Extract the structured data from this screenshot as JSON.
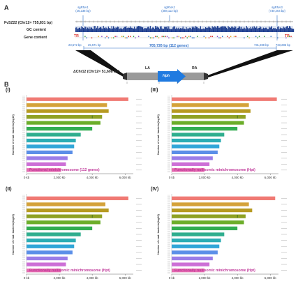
{
  "panels": {
    "a": "A",
    "b": "B"
  },
  "panel_a": {
    "chr_label": "FvSZ22 (Chr12= 755,831 bp)",
    "tracks": [
      "GC content",
      "Gene content"
    ],
    "sgrnas": [
      {
        "name": "sgRNA1",
        "pos": "(26,238 bp)"
      },
      {
        "name": "sgRNA2",
        "pos": "(388,113 bp)"
      },
      {
        "name": "sgRNA3",
        "pos": "(730,264 bp)"
      }
    ],
    "tr_left": "TR",
    "tr_right": "TR",
    "coords": {
      "left_outer": "23,572 bp",
      "left_inner": "25,571 bp",
      "right_inner": "731,288 bp",
      "right_outer": "733,285 bp"
    },
    "deletion_span": "705,726 bp (112 genes)",
    "mini_label": "ΔChr12 (Chr12= 51,608 bp)",
    "la": "LA",
    "ra": "RA",
    "hph": "Hph"
  },
  "panel_b": {
    "y_axis_label": "Number of read: bacterio(log10)",
    "charts": [
      {
        "roman": "(I)",
        "caption": "Functional minichromosome (112 genes)",
        "x_ticks": [
          "0 kb",
          "2,000 kb",
          "4,000 kb",
          "6,000 kb"
        ],
        "bars": [
          {
            "value": 6200,
            "color": "#f07a74"
          },
          {
            "value": 4900,
            "color": "#d4a23a"
          },
          {
            "value": 5000,
            "color": "#b79a22"
          },
          {
            "value": 4600,
            "color": "#8fa124"
          },
          {
            "value": 4500,
            "color": "#6cae2a"
          },
          {
            "value": 4000,
            "color": "#33ad52"
          },
          {
            "value": 3300,
            "color": "#2fae8e"
          },
          {
            "value": 3000,
            "color": "#2cadb4"
          },
          {
            "value": 2900,
            "color": "#31a6d8"
          },
          {
            "value": 2800,
            "color": "#5b8fe8"
          },
          {
            "value": 2500,
            "color": "#9b7de8"
          },
          {
            "value": 2400,
            "color": "#cc6fd6"
          },
          {
            "value": 2100,
            "color": "#e46bb0"
          }
        ]
      },
      {
        "roman": "(III)",
        "caption": "Functionally nullisomic minichromosome (Hpt)",
        "x_ticks": [
          "0 kb",
          "2,000 kb",
          "4,000 kb",
          "6,000 kb"
        ],
        "bars": [
          {
            "value": 6400,
            "color": "#f07a74"
          },
          {
            "value": 4700,
            "color": "#d4a23a"
          },
          {
            "value": 4800,
            "color": "#b79a22"
          },
          {
            "value": 4500,
            "color": "#8fa124"
          },
          {
            "value": 4400,
            "color": "#6cae2a"
          },
          {
            "value": 4000,
            "color": "#33ad52"
          },
          {
            "value": 3200,
            "color": "#2fae8e"
          },
          {
            "value": 3000,
            "color": "#2cadb4"
          },
          {
            "value": 2900,
            "color": "#31a6d8"
          },
          {
            "value": 2800,
            "color": "#5b8fe8"
          },
          {
            "value": 2500,
            "color": "#9b7de8"
          },
          {
            "value": 2300,
            "color": "#cc6fd6"
          },
          {
            "value": 2000,
            "color": "#e46bb0"
          }
        ]
      },
      {
        "roman": "(II)",
        "caption": "Functionally nullisomic minichromosome (Hpt)",
        "x_ticks": [
          "0 kb",
          "2,000 kb",
          "4,000 kb",
          "6,000 kb"
        ],
        "bars": [
          {
            "value": 6200,
            "color": "#f07a74"
          },
          {
            "value": 4800,
            "color": "#d4a23a"
          },
          {
            "value": 5000,
            "color": "#b79a22"
          },
          {
            "value": 4600,
            "color": "#8fa124"
          },
          {
            "value": 4500,
            "color": "#6cae2a"
          },
          {
            "value": 4000,
            "color": "#33ad52"
          },
          {
            "value": 3300,
            "color": "#2fae8e"
          },
          {
            "value": 3000,
            "color": "#2cadb4"
          },
          {
            "value": 2900,
            "color": "#31a6d8"
          },
          {
            "value": 2800,
            "color": "#5b8fe8"
          },
          {
            "value": 2500,
            "color": "#9b7de8"
          },
          {
            "value": 2400,
            "color": "#cc6fd6"
          },
          {
            "value": 2100,
            "color": "#e46bb0"
          }
        ]
      },
      {
        "roman": "(IV)",
        "caption": "Functionally nullisomic minichromosome (Hpt)",
        "x_ticks": [
          "0 kb",
          "2,000 kb",
          "4,000 kb",
          "6,000 kb"
        ],
        "bars": [
          {
            "value": 6300,
            "color": "#f07a74"
          },
          {
            "value": 4700,
            "color": "#d4a23a"
          },
          {
            "value": 4900,
            "color": "#b79a22"
          },
          {
            "value": 4500,
            "color": "#8fa124"
          },
          {
            "value": 4400,
            "color": "#6cae2a"
          },
          {
            "value": 4000,
            "color": "#33ad52"
          },
          {
            "value": 3200,
            "color": "#2fae8e"
          },
          {
            "value": 3000,
            "color": "#2cadb4"
          },
          {
            "value": 2900,
            "color": "#31a6d8"
          },
          {
            "value": 2800,
            "color": "#5b8fe8"
          },
          {
            "value": 2500,
            "color": "#9b7de8"
          },
          {
            "value": 2300,
            "color": "#cc6fd6"
          },
          {
            "value": 2000,
            "color": "#e46bb0"
          }
        ]
      }
    ]
  },
  "colors": {
    "blue": "#2e6fc8",
    "red": "#d9312b",
    "gc_track": "#1f3f8f",
    "arrow": "#1f7ae0",
    "caption": "#c0399a"
  }
}
